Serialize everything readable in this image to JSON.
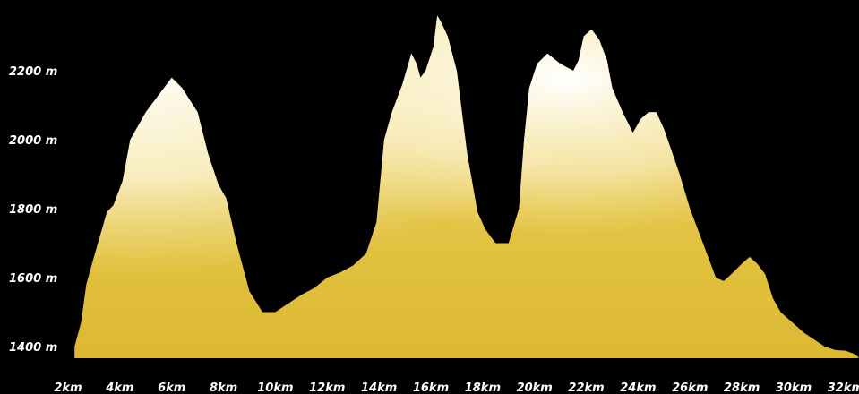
{
  "chart_data": {
    "type": "area",
    "title": "",
    "xlabel": "",
    "ylabel": "",
    "grid": false,
    "legend": "none",
    "xlim": [
      2,
      32.5
    ],
    "ylim": [
      1360,
      2380
    ],
    "x_ticks": [
      {
        "value": 2,
        "label": "2km"
      },
      {
        "value": 4,
        "label": "4km"
      },
      {
        "value": 6,
        "label": "6km"
      },
      {
        "value": 8,
        "label": "8km"
      },
      {
        "value": 10,
        "label": "10km"
      },
      {
        "value": 12,
        "label": "12km"
      },
      {
        "value": 14,
        "label": "14km"
      },
      {
        "value": 16,
        "label": "16km"
      },
      {
        "value": 18,
        "label": "18km"
      },
      {
        "value": 20,
        "label": "20km"
      },
      {
        "value": 22,
        "label": "22km"
      },
      {
        "value": 24,
        "label": "24km"
      },
      {
        "value": 26,
        "label": "26km"
      },
      {
        "value": 28,
        "label": "28km"
      },
      {
        "value": 30,
        "label": "30km"
      },
      {
        "value": 32,
        "label": "32km"
      }
    ],
    "y_ticks": [
      {
        "value": 1400,
        "label": "1400 m"
      },
      {
        "value": 1600,
        "label": "1600 m"
      },
      {
        "value": 1800,
        "label": "1800 m"
      },
      {
        "value": 2000,
        "label": "2000 m"
      },
      {
        "value": 2200,
        "label": "2200 m"
      }
    ],
    "x": [
      2.25,
      2.5,
      2.7,
      3.0,
      3.5,
      3.75,
      4.1,
      4.4,
      5.0,
      5.4,
      6.0,
      6.4,
      7.0,
      7.4,
      7.8,
      8.1,
      8.5,
      9.0,
      9.5,
      10.0,
      10.4,
      11.0,
      11.5,
      12.0,
      12.5,
      13.0,
      13.5,
      13.9,
      14.2,
      14.5,
      14.9,
      15.25,
      15.45,
      15.6,
      15.8,
      16.1,
      16.25,
      16.4,
      16.65,
      17.0,
      17.4,
      17.8,
      18.1,
      18.5,
      19.0,
      19.4,
      19.6,
      19.8,
      20.1,
      20.5,
      21.0,
      21.5,
      21.7,
      21.9,
      22.2,
      22.5,
      22.8,
      23.0,
      23.4,
      23.8,
      24.1,
      24.4,
      24.7,
      25.0,
      25.6,
      26.0,
      26.5,
      27.0,
      27.3,
      27.6,
      28.0,
      28.3,
      28.6,
      28.9,
      29.2,
      29.5,
      29.8,
      30.1,
      30.4,
      30.8,
      31.2,
      31.6,
      32.0,
      32.3,
      32.5
    ],
    "y": [
      1400,
      1470,
      1580,
      1660,
      1790,
      1810,
      1880,
      2000,
      2080,
      2120,
      2180,
      2150,
      2080,
      1960,
      1870,
      1830,
      1700,
      1560,
      1500,
      1500,
      1520,
      1550,
      1570,
      1600,
      1615,
      1635,
      1670,
      1760,
      2000,
      2080,
      2160,
      2250,
      2220,
      2180,
      2200,
      2270,
      2360,
      2340,
      2300,
      2200,
      1960,
      1790,
      1740,
      1700,
      1700,
      1800,
      2000,
      2150,
      2220,
      2250,
      2220,
      2200,
      2230,
      2300,
      2320,
      2290,
      2230,
      2150,
      2080,
      2020,
      2060,
      2080,
      2080,
      2030,
      1900,
      1800,
      1700,
      1600,
      1590,
      1610,
      1640,
      1660,
      1640,
      1610,
      1540,
      1500,
      1480,
      1460,
      1440,
      1420,
      1400,
      1390,
      1388,
      1380,
      1370
    ]
  },
  "colors": {
    "background": "#000000",
    "fill_light": "#ffffff",
    "fill_mid": "#f2df96",
    "fill_gold": "#e6c333",
    "fill_deep": "#cfa72a",
    "text": "#ffffff"
  }
}
